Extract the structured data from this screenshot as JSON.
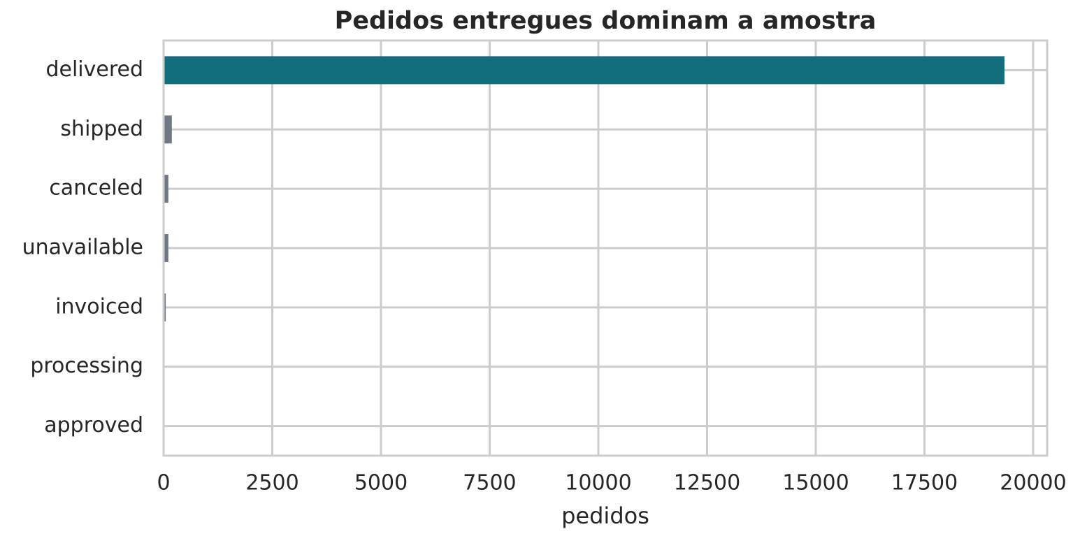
{
  "chart_data": {
    "type": "barh",
    "title": "Pedidos entregues dominam a amostra",
    "xlabel": "pedidos",
    "categories": [
      "delivered",
      "shipped",
      "canceled",
      "unavailable",
      "invoiced",
      "processing",
      "approved"
    ],
    "values": [
      19340,
      190,
      110,
      110,
      50,
      3,
      2
    ],
    "colors": [
      "#126e7c",
      "#6f7882",
      "#6f7882",
      "#6f7882",
      "#6f7882",
      "#6f7882",
      "#6f7882"
    ],
    "xlim": [
      0,
      20322
    ],
    "xticks": [
      0,
      2500,
      5000,
      7500,
      10000,
      12500,
      15000,
      17500,
      20000
    ],
    "grid": true
  }
}
